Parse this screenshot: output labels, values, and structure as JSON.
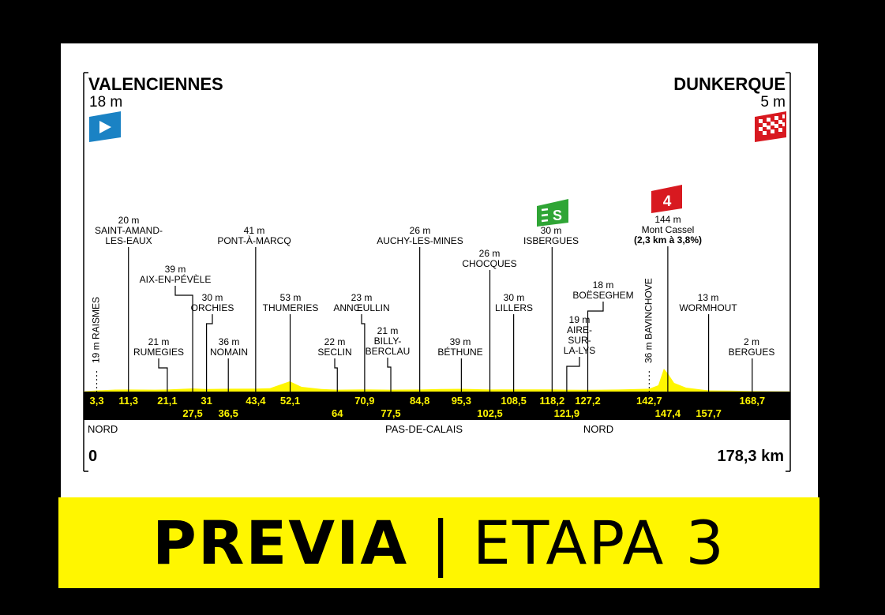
{
  "start": {
    "name": "VALENCIENNES",
    "alt": "18 m",
    "km": "0"
  },
  "finish": {
    "name": "DUNKERQUE",
    "alt": "5 m",
    "km": "178,3 km"
  },
  "regions": [
    "NORD",
    "PAS-DE-CALAIS",
    "NORD"
  ],
  "km_top_row": [
    "3,3",
    "11,3",
    "21,1",
    "31",
    "43,4",
    "52,1",
    "70,9",
    "84,8",
    "95,3",
    "108,5",
    "118,2",
    "127,2",
    "142,7",
    "168,7"
  ],
  "km_bottom_row": [
    "27,5",
    "36,5",
    "64",
    "77,5",
    "102,5",
    "121,9",
    "147,4",
    "157,7"
  ],
  "places": [
    {
      "km": 3.3,
      "alt_label": "19 m",
      "name_lines": [
        "RAISMES"
      ],
      "vertical": true
    },
    {
      "km": 11.3,
      "alt_label": "20 m",
      "name_lines": [
        "SAINT-AMAND-",
        "LES-EAUX"
      ]
    },
    {
      "km": 21.1,
      "alt_label": "21 m",
      "name_lines": [
        "RUMEGIES"
      ]
    },
    {
      "km": 27.5,
      "alt_label": "39 m",
      "name_lines": [
        "AIX-EN-PÉVÈLE"
      ]
    },
    {
      "km": 31,
      "alt_label": "30 m",
      "name_lines": [
        "ORCHIES"
      ]
    },
    {
      "km": 36.5,
      "alt_label": "36 m",
      "name_lines": [
        "NOMAIN"
      ]
    },
    {
      "km": 43.4,
      "alt_label": "41 m",
      "name_lines": [
        "PONT-À-MARCQ"
      ]
    },
    {
      "km": 52.1,
      "alt_label": "53 m",
      "name_lines": [
        "THUMERIES"
      ]
    },
    {
      "km": 64,
      "alt_label": "22 m",
      "name_lines": [
        "SECLIN"
      ]
    },
    {
      "km": 70.9,
      "alt_label": "23 m",
      "name_lines": [
        "ANNŒULLIN"
      ]
    },
    {
      "km": 77.5,
      "alt_label": "21 m",
      "name_lines": [
        "BILLY-",
        "BERCLAU"
      ]
    },
    {
      "km": 84.8,
      "alt_label": "26 m",
      "name_lines": [
        "AUCHY-LES-MINES"
      ]
    },
    {
      "km": 95.3,
      "alt_label": "39 m",
      "name_lines": [
        "BÉTHUNE"
      ]
    },
    {
      "km": 102.5,
      "alt_label": "26 m",
      "name_lines": [
        "CHOCQUES"
      ]
    },
    {
      "km": 108.5,
      "alt_label": "30 m",
      "name_lines": [
        "LILLERS"
      ]
    },
    {
      "km": 118.2,
      "alt_label": "30 m",
      "name_lines": [
        "ISBERGUES"
      ]
    },
    {
      "km": 121.9,
      "alt_label": "19 m",
      "name_lines": [
        "AIRE-",
        "SUR-",
        "LA-LYS"
      ]
    },
    {
      "km": 127.2,
      "alt_label": "18 m",
      "name_lines": [
        "BOËSEGHEM"
      ]
    },
    {
      "km": 142.7,
      "alt_label": "36 m",
      "name_lines": [
        "BAVINCHOVE"
      ],
      "vertical": true
    },
    {
      "km": 147.4,
      "alt_label": "144 m",
      "name_lines": [
        "Mont Cassel",
        "(2,3 km à 3,8%)"
      ]
    },
    {
      "km": 157.7,
      "alt_label": "13 m",
      "name_lines": [
        "WORMHOUT"
      ]
    },
    {
      "km": 168.7,
      "alt_label": "2 m",
      "name_lines": [
        "BERGUES"
      ]
    }
  ],
  "sprint_badge": {
    "label": "S",
    "color": "#2fa535"
  },
  "climb_badge": {
    "label": "4",
    "color": "#d81920"
  },
  "banner": {
    "bold": "PREVIA",
    "separator": "|",
    "light": "ETAPA 3"
  },
  "colors": {
    "profile": "#fff600",
    "start_flag": "#1a82c4",
    "finish_flag": "#d81920",
    "strip": "#000000",
    "km_text": "#fff600"
  }
}
